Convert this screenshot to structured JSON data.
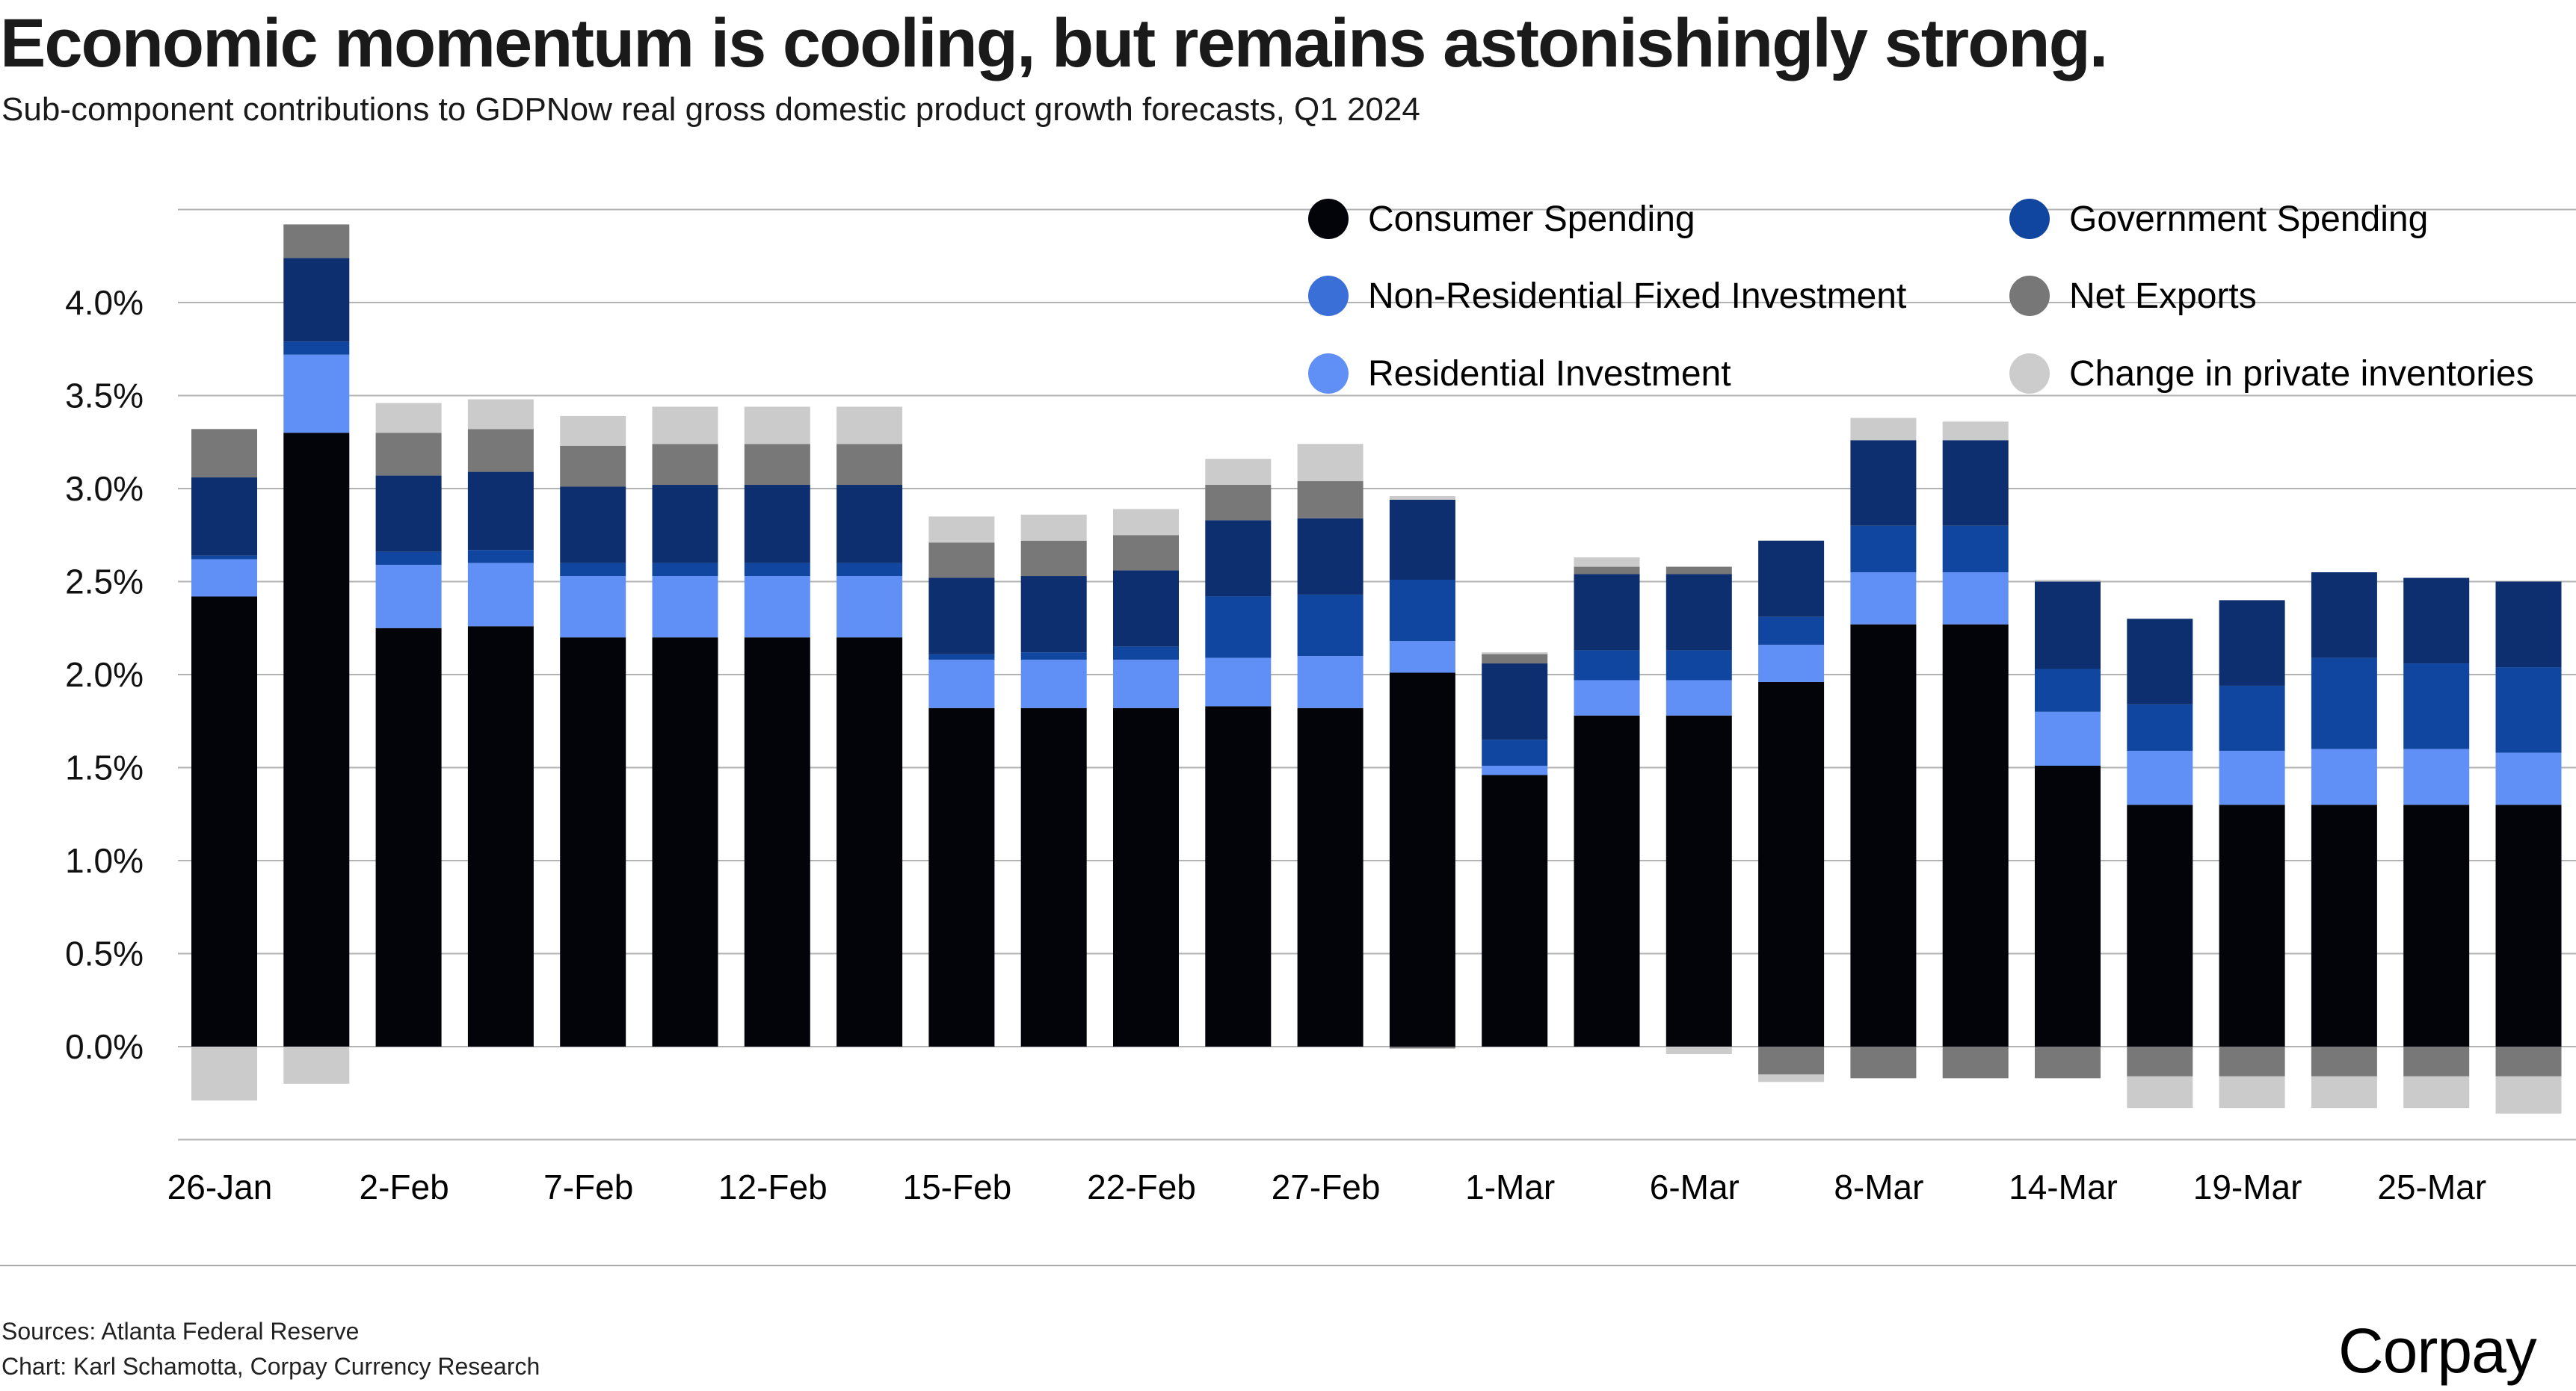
{
  "header": {
    "title": "Economic momentum is cooling, but remains astonishingly strong.",
    "subtitle": "Sub-component contributions to GDPNow real gross domestic product growth forecasts, Q1 2024"
  },
  "legend": [
    {
      "label": "Consumer Spending",
      "color": "#03030a"
    },
    {
      "label": "Non-Residential Fixed Investment",
      "color": "#3a6fd8"
    },
    {
      "label": "Residential Investment",
      "color": "#6090f5"
    },
    {
      "label": "Government Spending",
      "color": "#1046a0"
    },
    {
      "label": "Net Exports",
      "color": "#777777"
    },
    {
      "label": "Change in private inventories",
      "color": "#cccccc"
    }
  ],
  "footer": {
    "sources": "Sources: Atlanta Federal Reserve",
    "credit": "Chart: Karl Schamotta, Corpay Currency Research",
    "logo_text": "Corpay",
    "logo_accent_color": "#c8104e"
  },
  "chart_data": {
    "type": "bar",
    "stacked": true,
    "title": "Economic momentum is cooling, but remains astonishingly strong.",
    "subtitle": "Sub-component contributions to GDPNow real gross domestic product growth forecasts, Q1 2024",
    "xlabel": "",
    "ylabel": "",
    "ylim": [
      -0.5,
      4.5
    ],
    "yticks": [
      0.0,
      0.5,
      1.0,
      1.5,
      2.0,
      2.5,
      3.0,
      3.5,
      4.0
    ],
    "ytick_labels": [
      "0.0%",
      "0.5%",
      "1.0%",
      "1.5%",
      "2.0%",
      "2.5%",
      "3.0%",
      "3.5%",
      "4.0%"
    ],
    "grid": true,
    "legend_position": "top-right",
    "categories": [
      "26-Jan",
      "",
      "2-Feb",
      "",
      "7-Feb",
      "",
      "12-Feb",
      "",
      "15-Feb",
      "",
      "22-Feb",
      "",
      "27-Feb",
      "",
      "1-Mar",
      "",
      "6-Mar",
      "",
      "8-Mar",
      "",
      "14-Mar",
      "",
      "19-Mar",
      "",
      "25-Mar",
      ""
    ],
    "series": [
      {
        "name": "Consumer Spending",
        "color": "#03030a",
        "values": [
          2.42,
          3.3,
          2.25,
          2.26,
          2.2,
          2.2,
          2.2,
          2.2,
          1.82,
          1.82,
          1.82,
          1.83,
          1.82,
          2.01,
          1.46,
          1.78,
          1.78,
          1.96,
          2.27,
          2.27,
          1.51,
          1.3,
          1.3,
          1.3,
          1.3,
          1.3
        ]
      },
      {
        "name": "Residential Investment",
        "color": "#6090f5",
        "values": [
          0.2,
          0.42,
          0.34,
          0.34,
          0.33,
          0.33,
          0.33,
          0.33,
          0.26,
          0.26,
          0.26,
          0.26,
          0.28,
          0.17,
          0.05,
          0.19,
          0.19,
          0.2,
          0.28,
          0.28,
          0.29,
          0.29,
          0.29,
          0.3,
          0.3,
          0.28
        ]
      },
      {
        "name": "Non-Residential Fixed Investment",
        "color": "#1046a0",
        "values": [
          0.02,
          0.07,
          0.07,
          0.07,
          0.07,
          0.07,
          0.07,
          0.07,
          0.03,
          0.04,
          0.07,
          0.33,
          0.33,
          0.33,
          0.14,
          0.16,
          0.16,
          0.15,
          0.25,
          0.25,
          0.23,
          0.25,
          0.35,
          0.49,
          0.46,
          0.46
        ]
      },
      {
        "name": "Government Spending",
        "color": "#0d2f6f",
        "values": [
          0.42,
          0.45,
          0.41,
          0.42,
          0.41,
          0.42,
          0.42,
          0.42,
          0.41,
          0.41,
          0.41,
          0.41,
          0.41,
          0.43,
          0.41,
          0.41,
          0.41,
          0.41,
          0.46,
          0.46,
          0.47,
          0.46,
          0.46,
          0.46,
          0.46,
          0.46
        ]
      },
      {
        "name": "Net Exports",
        "color": "#787878",
        "values": [
          0.26,
          0.18,
          0.23,
          0.23,
          0.22,
          0.22,
          0.22,
          0.22,
          0.19,
          0.19,
          0.19,
          0.19,
          0.2,
          -0.01,
          0.05,
          0.04,
          0.04,
          -0.15,
          -0.17,
          -0.17,
          -0.17,
          -0.16,
          -0.16,
          -0.16,
          -0.16,
          -0.16
        ]
      },
      {
        "name": "Change in private inventories",
        "color": "#cbcbcb",
        "values": [
          -0.29,
          -0.2,
          0.16,
          0.16,
          0.16,
          0.2,
          0.2,
          0.2,
          0.14,
          0.14,
          0.14,
          0.14,
          0.2,
          0.02,
          0.01,
          0.05,
          -0.04,
          -0.04,
          0.12,
          0.1,
          0.01,
          -0.17,
          -0.17,
          -0.17,
          -0.17,
          -0.2
        ]
      }
    ]
  }
}
